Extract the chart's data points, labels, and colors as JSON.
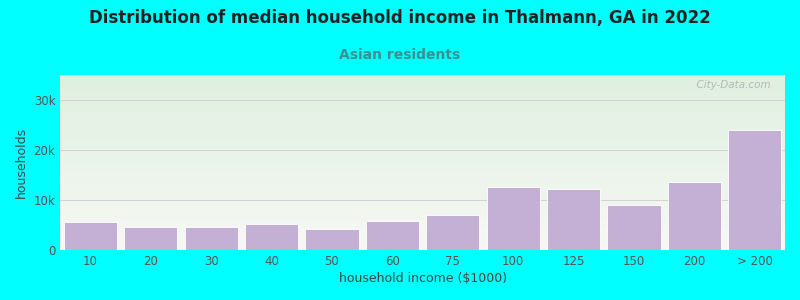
{
  "title": "Distribution of median household income in Thalmann, GA in 2022",
  "subtitle": "Asian residents",
  "xlabel": "household income ($1000)",
  "ylabel": "households",
  "background_outer": "#00FFFF",
  "background_inner_top": "#f7f8f5",
  "background_inner_bottom": "#dff0df",
  "bar_color": "#c4b0d5",
  "bar_edge_color": "#ffffff",
  "categories": [
    "10",
    "20",
    "30",
    "40",
    "50",
    "60",
    "75",
    "100",
    "125",
    "150",
    "200",
    "> 200"
  ],
  "values": [
    5500,
    4500,
    4500,
    5200,
    4200,
    5800,
    7000,
    12500,
    12200,
    9000,
    13500,
    24000
  ],
  "ylim": [
    0,
    35000
  ],
  "yticks": [
    0,
    10000,
    20000,
    30000
  ],
  "ytick_labels": [
    "0",
    "10k",
    "20k",
    "30k"
  ],
  "watermark": "  City-Data.com",
  "title_fontsize": 12,
  "subtitle_fontsize": 10,
  "subtitle_color": "#3a9090",
  "axis_label_fontsize": 9,
  "tick_fontsize": 8.5
}
